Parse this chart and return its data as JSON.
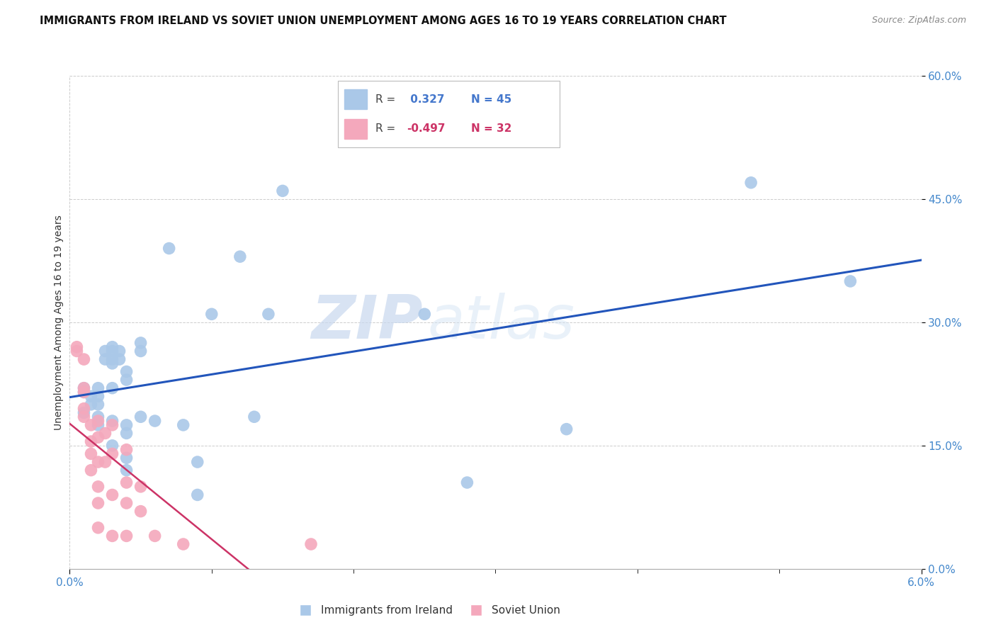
{
  "title": "IMMIGRANTS FROM IRELAND VS SOVIET UNION UNEMPLOYMENT AMONG AGES 16 TO 19 YEARS CORRELATION CHART",
  "source": "Source: ZipAtlas.com",
  "ylabel": "Unemployment Among Ages 16 to 19 years",
  "xlim": [
    0.0,
    0.06
  ],
  "ylim": [
    0.0,
    0.6
  ],
  "yticks": [
    0.0,
    0.15,
    0.3,
    0.45,
    0.6
  ],
  "xtick_labels_show": [
    0.0,
    0.06
  ],
  "xtick_minor": [
    0.01,
    0.02,
    0.03,
    0.04,
    0.05
  ],
  "ireland_R": "0.327",
  "ireland_N": "45",
  "soviet_R": "-0.497",
  "soviet_N": "32",
  "ireland_color": "#aac8e8",
  "soviet_color": "#f4a8bc",
  "ireland_line_color": "#2255bb",
  "soviet_line_color": "#cc3366",
  "watermark_zip": "ZIP",
  "watermark_atlas": "atlas",
  "legend_label_ireland": "Immigrants from Ireland",
  "legend_label_soviet": "Soviet Union",
  "label_color": "#4488cc",
  "ireland_x": [
    0.001,
    0.001,
    0.001,
    0.0015,
    0.0015,
    0.002,
    0.002,
    0.002,
    0.002,
    0.002,
    0.0025,
    0.0025,
    0.003,
    0.003,
    0.003,
    0.003,
    0.003,
    0.003,
    0.003,
    0.0035,
    0.0035,
    0.004,
    0.004,
    0.004,
    0.004,
    0.004,
    0.004,
    0.005,
    0.005,
    0.005,
    0.006,
    0.007,
    0.008,
    0.009,
    0.009,
    0.01,
    0.012,
    0.013,
    0.014,
    0.015,
    0.025,
    0.028,
    0.035,
    0.048,
    0.055
  ],
  "ireland_y": [
    0.22,
    0.19,
    0.215,
    0.21,
    0.2,
    0.21,
    0.2,
    0.185,
    0.175,
    0.22,
    0.265,
    0.255,
    0.27,
    0.265,
    0.255,
    0.25,
    0.22,
    0.18,
    0.15,
    0.265,
    0.255,
    0.24,
    0.23,
    0.175,
    0.165,
    0.135,
    0.12,
    0.275,
    0.265,
    0.185,
    0.18,
    0.39,
    0.175,
    0.13,
    0.09,
    0.31,
    0.38,
    0.185,
    0.31,
    0.46,
    0.31,
    0.105,
    0.17,
    0.47,
    0.35
  ],
  "soviet_x": [
    0.0005,
    0.0005,
    0.001,
    0.001,
    0.001,
    0.001,
    0.001,
    0.0015,
    0.0015,
    0.0015,
    0.0015,
    0.002,
    0.002,
    0.002,
    0.002,
    0.002,
    0.002,
    0.0025,
    0.0025,
    0.003,
    0.003,
    0.003,
    0.003,
    0.004,
    0.004,
    0.004,
    0.004,
    0.005,
    0.005,
    0.006,
    0.008,
    0.017
  ],
  "soviet_y": [
    0.27,
    0.265,
    0.255,
    0.22,
    0.215,
    0.195,
    0.185,
    0.175,
    0.155,
    0.14,
    0.12,
    0.18,
    0.16,
    0.13,
    0.1,
    0.08,
    0.05,
    0.165,
    0.13,
    0.175,
    0.14,
    0.09,
    0.04,
    0.145,
    0.105,
    0.08,
    0.04,
    0.1,
    0.07,
    0.04,
    0.03,
    0.03
  ]
}
